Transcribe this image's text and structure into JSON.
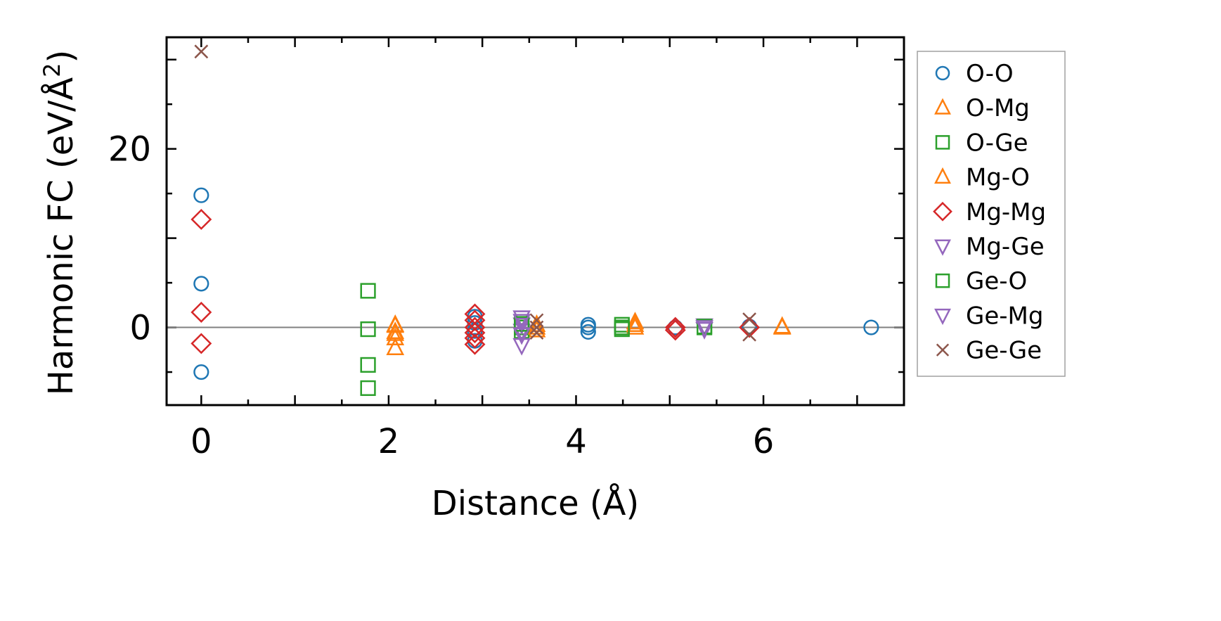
{
  "chart_data": {
    "type": "scatter",
    "xlabel": "Distance (Å)",
    "ylabel": "Harmonic FC (eV/Å",
    "ylabel_superscript": "2",
    "ylabel_suffix": ")",
    "xlim": [
      -0.37,
      7.5
    ],
    "ylim": [
      -8.7,
      32.5
    ],
    "xticks": [
      0,
      2,
      4,
      6
    ],
    "yticks": [
      0,
      20
    ],
    "x_minor_step": 0.5,
    "y_minor_step": 5,
    "zero_line": true,
    "legend_position": "outside-right",
    "series": [
      {
        "name": "O-O",
        "marker": "circle",
        "color": "#1f77b4",
        "filled": false,
        "points": [
          [
            0,
            14.8
          ],
          [
            0,
            4.9
          ],
          [
            0,
            -5.0
          ],
          [
            2.92,
            1.2
          ],
          [
            2.92,
            0.5
          ],
          [
            2.92,
            -0.4
          ],
          [
            2.92,
            -1.5
          ],
          [
            4.13,
            0.3
          ],
          [
            4.13,
            0.0
          ],
          [
            4.13,
            -0.5
          ],
          [
            5.06,
            0.0
          ],
          [
            5.85,
            0.1
          ],
          [
            7.15,
            0.0
          ]
        ]
      },
      {
        "name": "O-Mg",
        "marker": "triangle-up",
        "color": "#ff7f0e",
        "filled": false,
        "points": [
          [
            2.07,
            0.3
          ],
          [
            2.07,
            -0.5
          ],
          [
            2.07,
            -1.2
          ],
          [
            2.07,
            -2.3
          ],
          [
            3.58,
            0.3
          ],
          [
            3.58,
            -0.3
          ],
          [
            4.63,
            0.6
          ],
          [
            4.63,
            0.0
          ],
          [
            6.2,
            0.0
          ]
        ]
      },
      {
        "name": "O-Ge",
        "marker": "square",
        "color": "#2ca02c",
        "filled": false,
        "points": [
          [
            1.78,
            4.1
          ],
          [
            1.78,
            -4.2
          ],
          [
            1.78,
            -6.8
          ],
          [
            3.42,
            0.0
          ],
          [
            3.42,
            -0.4
          ],
          [
            4.49,
            0.3
          ],
          [
            4.49,
            -0.2
          ],
          [
            5.37,
            0.0
          ]
        ]
      },
      {
        "name": "Mg-O",
        "marker": "triangle-up",
        "color": "#ff7f0e",
        "filled": false,
        "points": [
          [
            2.07,
            0.2
          ],
          [
            2.07,
            -0.7
          ],
          [
            3.58,
            0.0
          ],
          [
            4.63,
            0.3
          ],
          [
            6.2,
            0.1
          ]
        ]
      },
      {
        "name": "Mg-Mg",
        "marker": "diamond",
        "color": "#d62728",
        "filled": false,
        "points": [
          [
            0,
            12.1
          ],
          [
            0,
            1.7
          ],
          [
            0,
            -1.8
          ],
          [
            2.92,
            1.5
          ],
          [
            2.92,
            0.8
          ],
          [
            2.92,
            0.0
          ],
          [
            2.92,
            -0.6
          ],
          [
            2.92,
            -1.2
          ],
          [
            2.92,
            -1.9
          ],
          [
            5.06,
            0.0
          ],
          [
            5.06,
            -0.3
          ],
          [
            5.85,
            0.0
          ]
        ]
      },
      {
        "name": "Mg-Ge",
        "marker": "triangle-down",
        "color": "#9467bd",
        "filled": false,
        "points": [
          [
            3.42,
            1.1
          ],
          [
            3.42,
            0.3
          ],
          [
            3.42,
            -0.4
          ],
          [
            3.42,
            -2.0
          ],
          [
            5.37,
            0.2
          ],
          [
            5.37,
            -0.2
          ]
        ]
      },
      {
        "name": "Ge-O",
        "marker": "square",
        "color": "#2ca02c",
        "filled": false,
        "points": [
          [
            1.78,
            -0.2
          ],
          [
            3.42,
            0.4
          ],
          [
            4.49,
            0.0
          ],
          [
            5.37,
            0.1
          ]
        ]
      },
      {
        "name": "Ge-Mg",
        "marker": "triangle-down",
        "color": "#9467bd",
        "filled": false,
        "points": [
          [
            3.42,
            0.7
          ],
          [
            3.42,
            -0.8
          ],
          [
            5.37,
            0.0
          ]
        ]
      },
      {
        "name": "Ge-Ge",
        "marker": "x",
        "color": "#8c564b",
        "filled": false,
        "points": [
          [
            0,
            30.9
          ],
          [
            3.58,
            0.8
          ],
          [
            3.58,
            0.0
          ],
          [
            3.58,
            -0.6
          ],
          [
            5.85,
            0.9
          ],
          [
            5.85,
            -0.8
          ]
        ]
      }
    ]
  }
}
